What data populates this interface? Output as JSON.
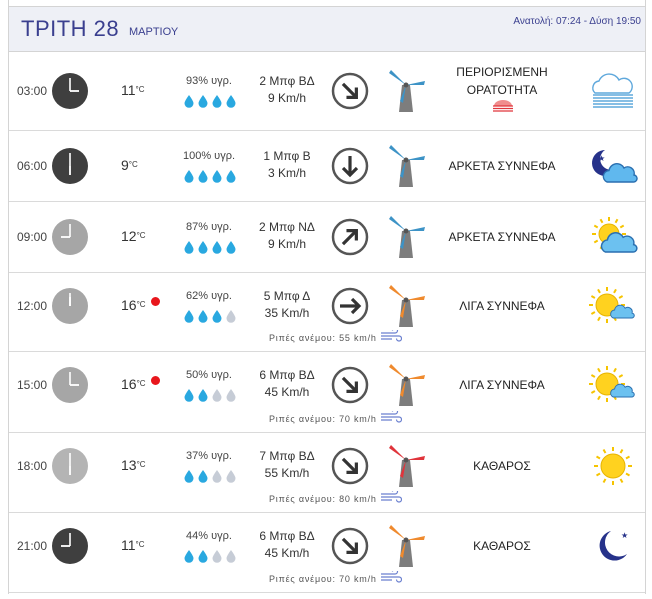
{
  "header": {
    "day": "ΤΡΙΤΗ 28",
    "month": "ΜΑΡΤΙΟΥ",
    "sun": "Ανατολή: 07:24  - Δύση 19:50"
  },
  "colors": {
    "accent": "#3a3f8f",
    "drop_full": "#29a8e0",
    "drop_empty": "#c6ccd6",
    "alert": "#e8161c"
  },
  "rows": [
    {
      "time": "03:00",
      "temp": "11",
      "unit": "°C",
      "alert": false,
      "humidity": "93% υγρ.",
      "drops": 4,
      "bft": "2 Μπφ ΒΔ",
      "kmh": "9 Km/h",
      "gust": "",
      "wind_dir_icon": "arrow-southeast-icon",
      "mill_color": "blue",
      "cond": "ΠΕΡΙΟΡΙΣΜΕΝΗ ΟΡΑΤΟΤΗΤΑ",
      "weather_icon": "fog-icon"
    },
    {
      "time": "06:00",
      "temp": "9",
      "unit": "°C",
      "alert": false,
      "humidity": "100% υγρ.",
      "drops": 4,
      "bft": "1 Μπφ Β",
      "kmh": "3 Km/h",
      "gust": "",
      "wind_dir_icon": "arrow-south-icon",
      "mill_color": "blue",
      "cond": "ΑΡΚΕΤΑ ΣΥΝΝΕΦΑ",
      "weather_icon": "moon-cloud-icon"
    },
    {
      "time": "09:00",
      "temp": "12",
      "unit": "°C",
      "alert": false,
      "humidity": "87% υγρ.",
      "drops": 4,
      "bft": "2 Μπφ ΝΔ",
      "kmh": "9 Km/h",
      "gust": "",
      "wind_dir_icon": "arrow-northeast-icon",
      "mill_color": "blue",
      "cond": "ΑΡΚΕΤΑ ΣΥΝΝΕΦΑ",
      "weather_icon": "sun-cloud-icon"
    },
    {
      "time": "12:00",
      "temp": "16",
      "unit": "°C",
      "alert": true,
      "humidity": "62% υγρ.",
      "drops": 3,
      "bft": "5 Μπφ Δ",
      "kmh": "35 Km/h",
      "gust": "Ριπές ανέμου: 55 km/h",
      "wind_dir_icon": "arrow-east-icon",
      "mill_color": "orange",
      "cond": "ΛΙΓΑ ΣΥΝΝΕΦΑ",
      "weather_icon": "sun-small-cloud-icon"
    },
    {
      "time": "15:00",
      "temp": "16",
      "unit": "°C",
      "alert": true,
      "humidity": "50% υγρ.",
      "drops": 2,
      "bft": "6 Μπφ ΒΔ",
      "kmh": "45 Km/h",
      "gust": "Ριπές ανέμου: 70 km/h",
      "wind_dir_icon": "arrow-southeast-icon",
      "mill_color": "orange",
      "cond": "ΛΙΓΑ ΣΥΝΝΕΦΑ",
      "weather_icon": "sun-small-cloud-icon"
    },
    {
      "time": "18:00",
      "temp": "13",
      "unit": "°C",
      "alert": false,
      "humidity": "37% υγρ.",
      "drops": 2,
      "bft": "7 Μπφ ΒΔ",
      "kmh": "55 Km/h",
      "gust": "Ριπές ανέμου: 80 km/h",
      "wind_dir_icon": "arrow-southeast-icon",
      "mill_color": "red",
      "cond": "ΚΑΘΑΡΟΣ",
      "weather_icon": "sun-icon"
    },
    {
      "time": "21:00",
      "temp": "11",
      "unit": "°C",
      "alert": false,
      "humidity": "44% υγρ.",
      "drops": 2,
      "bft": "6 Μπφ ΒΔ",
      "kmh": "45 Km/h",
      "gust": "Ριπές ανέμου: 70 km/h",
      "wind_dir_icon": "arrow-southeast-icon",
      "mill_color": "orange",
      "cond": "ΚΑΘΑΡΟΣ",
      "weather_icon": "moon-icon"
    }
  ]
}
